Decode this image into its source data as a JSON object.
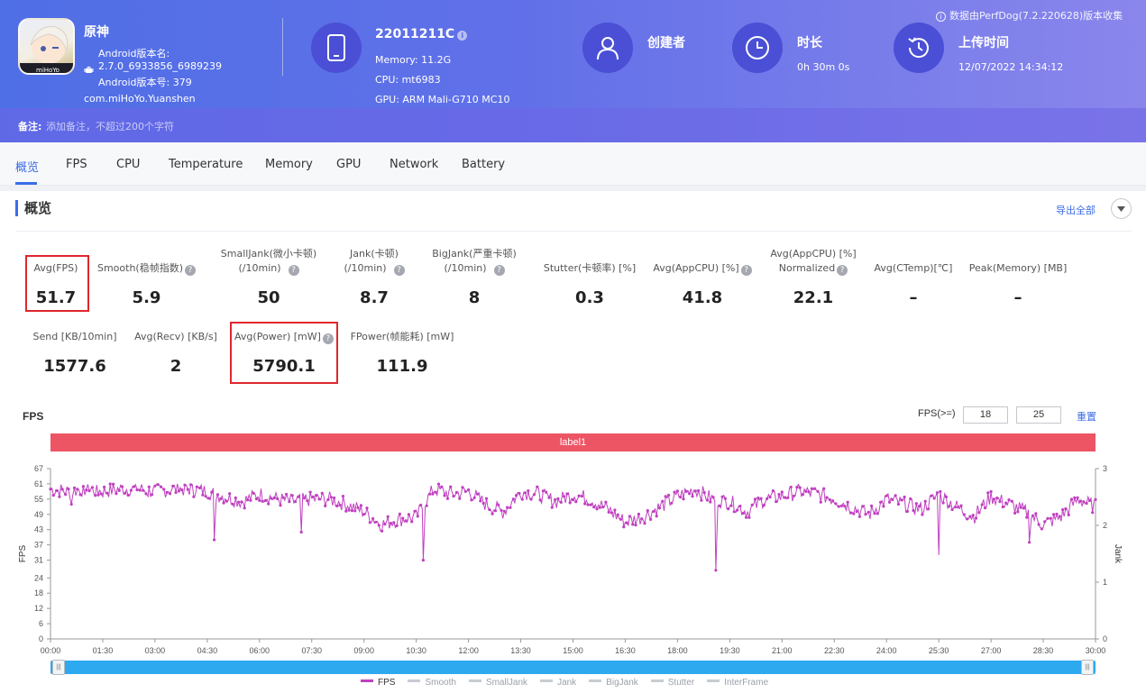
{
  "header": {
    "app_name": "原神",
    "android_version_name_label": "Android版本名:",
    "android_version_name": "2.7.0_6933856_6989239",
    "android_version_code": "Android版本号: 379",
    "package": "com.miHoYo.Yuanshen",
    "device_model": "22011211C",
    "memory": "Memory: 11.2G",
    "cpu": "CPU: mt6983",
    "gpu": "GPU: ARM Mali-G710 MC10",
    "creator_label": "创建者",
    "duration_label": "时长",
    "duration_value": "0h 30m 0s",
    "upload_label": "上传时间",
    "upload_value": "12/07/2022 14:34:12",
    "data_source": "数据由PerfDog(7.2.220628)版本收集",
    "note_label": "备注:",
    "note_placeholder": "添加备注，不超过200个字符"
  },
  "tabs": [
    "概览",
    "FPS",
    "CPU",
    "Temperature",
    "Memory",
    "GPU",
    "Network",
    "Battery"
  ],
  "overview": {
    "title": "概览",
    "export_label": "导出全部",
    "metrics_row1": [
      {
        "l1": "",
        "l2": "Avg(FPS)",
        "value": "51.7"
      },
      {
        "l1": "",
        "l2": "Smooth(稳帧指数)",
        "value": "5.9"
      },
      {
        "l1": "SmallJank(微小卡顿)",
        "l2": "(/10min)",
        "value": "50"
      },
      {
        "l1": "Jank(卡顿)",
        "l2": "(/10min)",
        "value": "8.7"
      },
      {
        "l1": "BigJank(严重卡顿)",
        "l2": "(/10min)",
        "value": "8"
      },
      {
        "l1": "",
        "l2": "Stutter(卡顿率) [%]",
        "value": "0.3"
      },
      {
        "l1": "",
        "l2": "Avg(AppCPU) [%]",
        "value": "41.8"
      },
      {
        "l1": "Avg(AppCPU) [%]",
        "l2": "Normalized",
        "value": "22.1"
      },
      {
        "l1": "",
        "l2": "Avg(CTemp)[℃]",
        "value": "–"
      },
      {
        "l1": "",
        "l2": "Peak(Memory) [MB]",
        "value": "–"
      }
    ],
    "metrics_row2": [
      {
        "l2": "Send [KB/10min]",
        "value": "1577.6"
      },
      {
        "l2": "Avg(Recv) [KB/s]",
        "value": "2"
      },
      {
        "l2": "Avg(Power) [mW]",
        "value": "5790.1"
      },
      {
        "l2": "FPower(帧能耗) [mW]",
        "value": "111.9"
      }
    ]
  },
  "fps_panel": {
    "title": "FPS",
    "threshold_label": "FPS(>=)",
    "threshold_1": "18",
    "threshold_2": "25",
    "reset_label": "重置",
    "band_label": "label1"
  },
  "chart_data": {
    "type": "line",
    "ylabel": "FPS",
    "y2label": "Jank",
    "ylim": [
      0,
      67
    ],
    "y2lim": [
      0,
      3
    ],
    "yticks": [
      0,
      6,
      12,
      18,
      24,
      31,
      37,
      43,
      49,
      55,
      61,
      67
    ],
    "y2ticks": [
      0,
      1,
      2,
      3
    ],
    "xticks": [
      "00:00",
      "01:30",
      "03:00",
      "04:30",
      "06:00",
      "07:30",
      "09:00",
      "10:30",
      "12:00",
      "13:30",
      "15:00",
      "16:30",
      "18:00",
      "19:30",
      "21:00",
      "22:30",
      "24:00",
      "25:30",
      "27:00",
      "28:30",
      "30:00"
    ],
    "series": [
      {
        "name": "FPS",
        "color": "#c040c0",
        "x_minutes": [
          0,
          0.5,
          1,
          1.5,
          2,
          2.5,
          3,
          3.5,
          4,
          4.5,
          5,
          5.5,
          6,
          6.5,
          7,
          7.5,
          8,
          8.5,
          9,
          9.5,
          10,
          10.5,
          11,
          11.5,
          12,
          12.5,
          13,
          13.5,
          14,
          14.5,
          15,
          15.5,
          16,
          16.5,
          17,
          17.5,
          18,
          18.5,
          19,
          19.5,
          20,
          20.5,
          21,
          21.5,
          22,
          22.5,
          23,
          23.5,
          24,
          24.5,
          25,
          25.5,
          26,
          26.5,
          27,
          27.5,
          28,
          28.5,
          29,
          29.5,
          30
        ],
        "values": [
          59,
          58,
          59,
          58,
          59,
          59,
          58,
          59,
          59,
          58,
          56,
          54,
          57,
          55,
          54,
          55,
          55,
          53,
          50,
          45,
          47,
          48,
          59,
          57,
          58,
          53,
          50,
          58,
          57,
          54,
          57,
          55,
          51,
          46,
          48,
          52,
          56,
          59,
          55,
          54,
          50,
          55,
          56,
          58,
          57,
          55,
          52,
          49,
          55,
          53,
          51,
          57,
          52,
          48,
          56,
          53,
          50,
          45,
          48,
          55,
          52
        ],
        "min_points": [
          {
            "x": 0.6,
            "y": 53
          },
          {
            "x": 2.8,
            "y": 56
          },
          {
            "x": 4.7,
            "y": 39
          },
          {
            "x": 7.2,
            "y": 42
          },
          {
            "x": 10.7,
            "y": 31
          },
          {
            "x": 19.1,
            "y": 27
          },
          {
            "x": 25.5,
            "y": 33
          },
          {
            "x": 28.1,
            "y": 38
          }
        ]
      }
    ],
    "legend": [
      "FPS",
      "Smooth",
      "SmallJank",
      "Jank",
      "BigJank",
      "Stutter",
      "InterFrame"
    ],
    "legend_position": "bottom"
  }
}
